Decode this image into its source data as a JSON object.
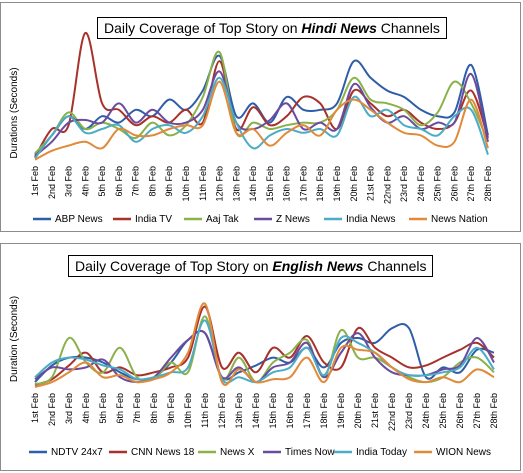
{
  "chart_data": [
    {
      "type": "line",
      "title": {
        "prefix": "Daily Coverage of Top Story  on ",
        "emph": "Hindi News",
        "suffix": " Channels"
      },
      "ylabel": "Durations (Seconds)",
      "xlabel": "",
      "ylim": [
        0,
        100
      ],
      "categories": [
        "1st Feb",
        "2nd Feb",
        "3rd Feb",
        "4th Feb",
        "5th Feb",
        "6th Feb",
        "7th Feb",
        "8th Feb",
        "9th Feb",
        "10th Feb",
        "11th Feb",
        "12th Feb",
        "13th Feb",
        "14th Feb",
        "15th Feb",
        "16th Feb",
        "17th Feb",
        "18th Feb",
        "19th Feb",
        "20th Feb",
        "21st Feb",
        "22nd Feb",
        "23rd Feb",
        "24th Feb",
        "25th Feb",
        "26th Feb",
        "27th Feb",
        "28th Feb"
      ],
      "legend_position": "bottom",
      "series": [
        {
          "name": "ABP News",
          "color": "#2e5ea8",
          "values": [
            5,
            20,
            35,
            25,
            35,
            30,
            40,
            35,
            48,
            40,
            55,
            82,
            35,
            45,
            30,
            50,
            40,
            40,
            45,
            78,
            65,
            55,
            50,
            40,
            35,
            38,
            75,
            20
          ]
        },
        {
          "name": "India TV",
          "color": "#a8312c",
          "values": [
            3,
            25,
            28,
            100,
            45,
            40,
            28,
            35,
            30,
            40,
            30,
            78,
            25,
            42,
            28,
            35,
            50,
            45,
            25,
            55,
            45,
            35,
            40,
            30,
            25,
            30,
            55,
            18
          ]
        },
        {
          "name": "Aaj Tak",
          "color": "#8bb14b",
          "values": [
            6,
            20,
            38,
            25,
            30,
            25,
            18,
            30,
            20,
            28,
            50,
            85,
            22,
            30,
            25,
            28,
            30,
            30,
            40,
            65,
            48,
            45,
            40,
            28,
            38,
            62,
            45,
            15
          ]
        },
        {
          "name": "Z News",
          "color": "#6b4b9d",
          "values": [
            4,
            15,
            30,
            32,
            30,
            45,
            30,
            40,
            30,
            30,
            40,
            70,
            30,
            25,
            32,
            45,
            25,
            30,
            25,
            60,
            42,
            30,
            35,
            25,
            30,
            30,
            68,
            15
          ]
        },
        {
          "name": "India News",
          "color": "#4bacc6",
          "values": [
            2,
            20,
            35,
            22,
            25,
            28,
            15,
            25,
            28,
            22,
            35,
            65,
            30,
            10,
            20,
            25,
            22,
            25,
            20,
            50,
            35,
            40,
            28,
            25,
            20,
            35,
            40,
            5
          ]
        },
        {
          "name": "News Nation",
          "color": "#e08a3a",
          "values": [
            1,
            8,
            12,
            15,
            10,
            25,
            20,
            20,
            25,
            28,
            28,
            62,
            22,
            25,
            12,
            22,
            28,
            20,
            40,
            48,
            40,
            30,
            22,
            20,
            12,
            15,
            48,
            10
          ]
        }
      ]
    },
    {
      "type": "line",
      "title": {
        "prefix": "Daily Coverage of Top Story  on ",
        "emph": "English News",
        "suffix": " Channels"
      },
      "ylabel": "Duration (Seconds)",
      "xlabel": "",
      "ylim": [
        0,
        100
      ],
      "categories": [
        "1st Feb",
        "2nd Feb",
        "3rd Feb",
        "4th Feb",
        "5th Feb",
        "6th Feb",
        "7th Feb",
        "8th Feb",
        "9th Feb",
        "10th Feb",
        "11th Feb",
        "12th Feb",
        "13th Feb",
        "14th Feb",
        "15th Feb",
        "16th Feb",
        "17th Feb",
        "18th Feb",
        "19th Feb",
        "20th Feb",
        "21st Feb",
        "22nd Feb",
        "23rd Feb",
        "24th Feb",
        "25th Feb",
        "26th Feb",
        "27th Feb",
        "28th Feb"
      ],
      "legend_position": "bottom",
      "series": [
        {
          "name": "NDTV 24x7",
          "color": "#2e5ea8",
          "values": [
            5,
            22,
            30,
            30,
            25,
            15,
            8,
            10,
            25,
            48,
            55,
            10,
            15,
            22,
            30,
            25,
            40,
            20,
            45,
            50,
            45,
            60,
            60,
            10,
            20,
            15,
            38,
            35
          ]
        },
        {
          "name": "CNN News 18",
          "color": "#a8312c",
          "values": [
            2,
            8,
            22,
            35,
            15,
            20,
            12,
            15,
            20,
            30,
            82,
            20,
            35,
            15,
            40,
            30,
            52,
            25,
            20,
            60,
            40,
            30,
            20,
            22,
            30,
            38,
            45,
            30
          ]
        },
        {
          "name": "News X",
          "color": "#8bb14b",
          "values": [
            3,
            10,
            50,
            25,
            15,
            40,
            10,
            8,
            25,
            15,
            72,
            8,
            30,
            5,
            25,
            35,
            48,
            10,
            58,
            30,
            30,
            20,
            10,
            5,
            10,
            25,
            30,
            15
          ]
        },
        {
          "name": "Times Now",
          "color": "#6b4b9d",
          "values": [
            8,
            20,
            18,
            20,
            28,
            10,
            5,
            10,
            30,
            48,
            55,
            10,
            20,
            5,
            20,
            25,
            45,
            10,
            35,
            55,
            30,
            15,
            12,
            12,
            18,
            22,
            50,
            25
          ]
        },
        {
          "name": "India Today",
          "color": "#4bacc6",
          "values": [
            10,
            25,
            30,
            28,
            22,
            18,
            8,
            10,
            15,
            20,
            68,
            8,
            10,
            5,
            15,
            20,
            40,
            12,
            50,
            45,
            35,
            20,
            12,
            12,
            15,
            20,
            40,
            18
          ]
        },
        {
          "name": "WION News",
          "color": "#e08a3a",
          "values": [
            0,
            5,
            15,
            25,
            10,
            12,
            5,
            8,
            15,
            35,
            85,
            5,
            18,
            5,
            8,
            10,
            30,
            5,
            40,
            38,
            35,
            20,
            8,
            5,
            10,
            5,
            18,
            10
          ]
        }
      ]
    }
  ]
}
